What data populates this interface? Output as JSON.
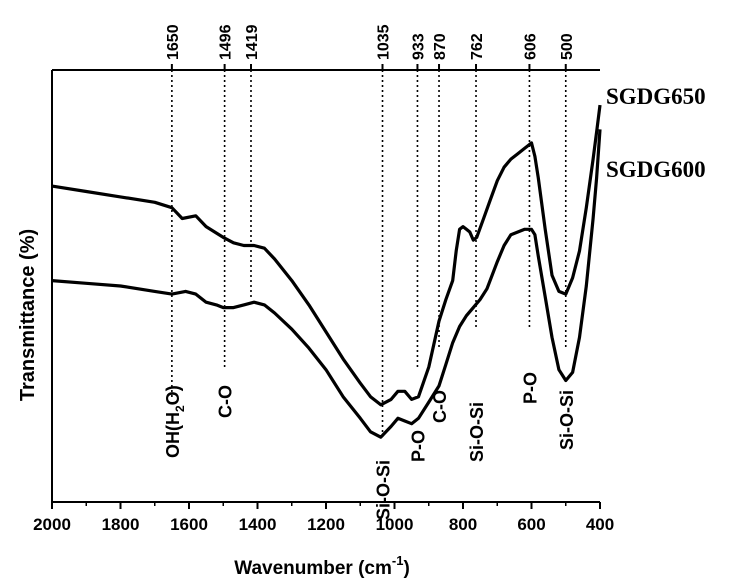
{
  "chart_data": {
    "type": "line",
    "xlabel": "Wavenumber (cm-1)",
    "xlabel_parts": {
      "base": "Wavenumber (cm",
      "sup": "-1",
      "close": ")"
    },
    "ylabel": "Transmittance (%)",
    "xlim": [
      2000,
      400
    ],
    "x_reversed": true,
    "x_ticks": [
      2000,
      1800,
      1600,
      1400,
      1200,
      1000,
      800,
      600,
      400
    ],
    "y_ticks_shown": false,
    "top_peak_labels": [
      "1650",
      "1496",
      "1419",
      "1035",
      "933",
      "870",
      "762",
      "606",
      "500"
    ],
    "top_peak_positions": [
      1650,
      1496,
      1419,
      1035,
      933,
      870,
      762,
      606,
      500
    ],
    "band_assignments": [
      {
        "x": 1650,
        "label": "OH(H2O)",
        "parts": {
          "a": "OH(H",
          "sub": "2",
          "b": "O)"
        }
      },
      {
        "x": 1496,
        "label": "C-O"
      },
      {
        "x": 1035,
        "label": "Si-O-Si"
      },
      {
        "x": 933,
        "label": "P-O"
      },
      {
        "x": 870,
        "label": "C-O"
      },
      {
        "x": 762,
        "label": "Si-O-Si"
      },
      {
        "x": 606,
        "label": "P-O"
      },
      {
        "x": 500,
        "label": "Si-O-Si"
      }
    ],
    "series": [
      {
        "name": "SGDG650",
        "x": [
          2000,
          1900,
          1800,
          1700,
          1650,
          1620,
          1580,
          1550,
          1500,
          1470,
          1440,
          1410,
          1380,
          1350,
          1300,
          1250,
          1200,
          1150,
          1100,
          1070,
          1040,
          1010,
          990,
          970,
          950,
          930,
          900,
          870,
          850,
          830,
          820,
          810,
          800,
          790,
          780,
          770,
          760,
          740,
          720,
          700,
          680,
          660,
          640,
          620,
          610,
          600,
          590,
          580,
          560,
          540,
          520,
          500,
          480,
          460,
          440,
          420,
          410,
          400
        ],
        "y": [
          82,
          80,
          78,
          76,
          74,
          70,
          71,
          67,
          63,
          61,
          60,
          60,
          59,
          55,
          47,
          38,
          28,
          18,
          9,
          4,
          1,
          3,
          6,
          6,
          3,
          4,
          15,
          32,
          40,
          47,
          58,
          66,
          67,
          66,
          65,
          62,
          63,
          70,
          77,
          84,
          89,
          92,
          94,
          96,
          97,
          98,
          93,
          85,
          66,
          49,
          43,
          42,
          48,
          58,
          74,
          92,
          102,
          112
        ]
      },
      {
        "name": "SGDG600",
        "x": [
          2000,
          1900,
          1800,
          1700,
          1650,
          1610,
          1580,
          1550,
          1520,
          1500,
          1470,
          1440,
          1410,
          1380,
          1350,
          1300,
          1250,
          1200,
          1150,
          1100,
          1070,
          1040,
          1010,
          990,
          970,
          950,
          930,
          900,
          870,
          850,
          830,
          810,
          790,
          770,
          750,
          730,
          700,
          680,
          660,
          640,
          620,
          600,
          590,
          580,
          560,
          540,
          520,
          500,
          480,
          460,
          440,
          420,
          410,
          400
        ],
        "y": [
          47,
          46,
          45,
          43,
          42,
          43,
          42,
          39,
          38,
          37,
          37,
          38,
          39,
          38,
          35,
          29,
          22,
          14,
          4,
          -4,
          -9,
          -11,
          -7,
          -4,
          -5,
          -6,
          -4,
          2,
          8,
          16,
          24,
          30,
          34,
          37,
          40,
          44,
          54,
          60,
          64,
          65,
          66,
          66,
          64,
          56,
          41,
          26,
          14,
          10,
          13,
          26,
          45,
          70,
          85,
          103
        ]
      }
    ],
    "ylim": [
      -35,
      125
    ],
    "legend_placement": "right, next to curves"
  },
  "colors": {
    "line": "#000000",
    "background": "#ffffff"
  }
}
